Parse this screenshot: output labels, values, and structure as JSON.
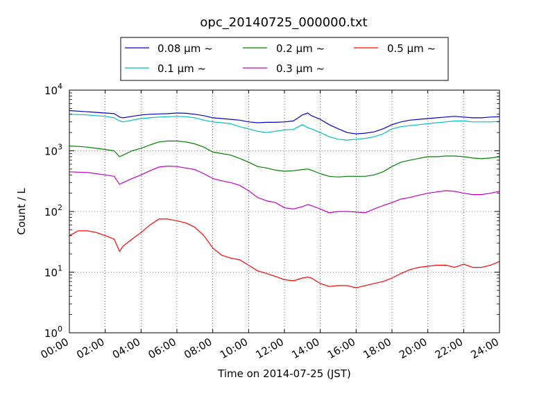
{
  "chart_data": {
    "type": "line",
    "title": "opc_20140725_000000.txt",
    "xlabel": "Time on 2014-07-25 (JST)",
    "ylabel": "Count / L",
    "yscale": "log",
    "xlim": [
      0,
      24
    ],
    "ylim": [
      1,
      10000
    ],
    "grid": true,
    "legend_position": "top",
    "x_tick_labels": [
      "00:00",
      "02:00",
      "04:00",
      "06:00",
      "08:00",
      "10:00",
      "12:00",
      "14:00",
      "16:00",
      "18:00",
      "20:00",
      "22:00",
      "24:00"
    ],
    "y_tick_labels": [
      {
        "base": "10",
        "exp": "0"
      },
      {
        "base": "10",
        "exp": "1"
      },
      {
        "base": "10",
        "exp": "2"
      },
      {
        "base": "10",
        "exp": "3"
      },
      {
        "base": "10",
        "exp": "4"
      }
    ],
    "x_hours": [
      0,
      0.5,
      1,
      1.5,
      2,
      2.5,
      2.8,
      3,
      3.5,
      4,
      4.5,
      5,
      5.5,
      6,
      6.5,
      7,
      7.5,
      8,
      8.5,
      9,
      9.5,
      10,
      10.5,
      11,
      11.5,
      12,
      12.5,
      13,
      13.3,
      13.5,
      14,
      14.5,
      15,
      15.5,
      16,
      16.5,
      17,
      17.5,
      18,
      18.5,
      19,
      19.5,
      20,
      20.5,
      21,
      21.5,
      22,
      22.5,
      23,
      23.5,
      24
    ],
    "series": [
      {
        "name": "0.08",
        "color": "#0000cc",
        "values": [
          4600,
          4500,
          4400,
          4300,
          4200,
          4100,
          3600,
          3500,
          3700,
          3900,
          4000,
          4050,
          4100,
          4200,
          4150,
          4000,
          3800,
          3500,
          3400,
          3300,
          3200,
          3000,
          2900,
          2950,
          2950,
          3000,
          3100,
          3900,
          4200,
          3800,
          3300,
          2700,
          2300,
          2000,
          1900,
          1950,
          2050,
          2300,
          2700,
          3000,
          3200,
          3300,
          3400,
          3500,
          3600,
          3700,
          3600,
          3500,
          3500,
          3600,
          3650
        ]
      },
      {
        "name": "0.1",
        "color": "#00bfbf",
        "values": [
          4000,
          3950,
          3900,
          3800,
          3700,
          3500,
          3100,
          3000,
          3200,
          3400,
          3500,
          3600,
          3650,
          3700,
          3650,
          3500,
          3200,
          3000,
          2900,
          2800,
          2500,
          2300,
          2100,
          2000,
          2100,
          2200,
          2250,
          2700,
          2400,
          2300,
          2000,
          1700,
          1550,
          1500,
          1550,
          1600,
          1700,
          1900,
          2300,
          2500,
          2600,
          2700,
          2800,
          2900,
          3000,
          3100,
          3100,
          3000,
          3000,
          3000,
          3050
        ]
      },
      {
        "name": "0.2",
        "color": "#008000",
        "values": [
          1200,
          1180,
          1150,
          1100,
          1050,
          1000,
          800,
          850,
          1000,
          1100,
          1250,
          1400,
          1450,
          1450,
          1400,
          1300,
          1150,
          950,
          900,
          850,
          750,
          650,
          550,
          520,
          480,
          460,
          470,
          490,
          500,
          480,
          420,
          380,
          370,
          380,
          380,
          380,
          400,
          450,
          550,
          650,
          700,
          750,
          800,
          800,
          820,
          820,
          800,
          760,
          740,
          760,
          800
        ]
      },
      {
        "name": "0.3",
        "color": "#bf00bf",
        "values": [
          450,
          445,
          440,
          420,
          400,
          380,
          280,
          300,
          350,
          400,
          470,
          540,
          560,
          550,
          520,
          490,
          420,
          350,
          320,
          300,
          270,
          220,
          170,
          150,
          140,
          115,
          110,
          120,
          130,
          125,
          110,
          95,
          100,
          100,
          98,
          95,
          110,
          125,
          140,
          160,
          170,
          185,
          200,
          210,
          220,
          215,
          200,
          190,
          190,
          200,
          215
        ]
      },
      {
        "name": "0.5",
        "color": "#ff0000",
        "values": [
          40,
          48,
          48,
          45,
          40,
          35,
          22,
          27,
          35,
          45,
          60,
          75,
          75,
          70,
          65,
          55,
          40,
          25,
          19,
          17,
          16,
          13,
          10.5,
          9.5,
          8.5,
          7.5,
          7.2,
          8,
          8.3,
          8,
          6.5,
          5.8,
          6,
          6,
          5.5,
          6,
          6.5,
          7,
          8,
          9.5,
          11,
          12,
          12.5,
          13,
          13,
          12,
          13.5,
          12,
          12,
          13,
          15
        ]
      }
    ]
  },
  "legend": {
    "items": [
      {
        "label": "0.08 μm ~",
        "color": "#0000cc"
      },
      {
        "label": "0.1 μm ~",
        "color": "#00bfbf"
      },
      {
        "label": "0.2 μm ~",
        "color": "#008000"
      },
      {
        "label": "0.3 μm ~",
        "color": "#bf00bf"
      },
      {
        "label": "0.5 μm ~",
        "color": "#ff0000"
      }
    ]
  }
}
